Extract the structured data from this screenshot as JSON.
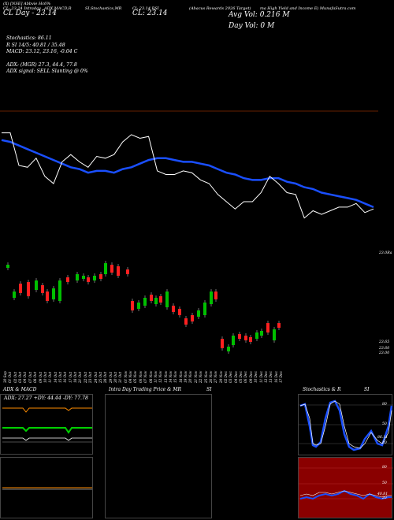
{
  "header": {
    "symbol_line": "(X) [NSE] Abbvie Hc6%",
    "row1": [
      "CL: 23.24 Intraday",
      "ADX,MACD,R",
      "SI,Stochastics,MR",
      "Cl: 23.14 RSI",
      "(Abacus Rewards 2026 Target)",
      "ma High Yield and Income E) MunafaSutra.com"
    ],
    "cl_left": "CL Day - 23.14",
    "cl_mid": "CL: 23.14",
    "avg_vol": "Avg Vol: 0.216  M",
    "day_vol": "Day Vol: 0  M",
    "stoch": "Stochastics: 86.11",
    "r_line": "R                    SI 14/5: 40.81 / 35.48",
    "macd": "MACD: 23.12,  23.16,  -0.04  C",
    "adx": "ADX:                         (MGR) 27.3,  44.4,  77.8",
    "adx_signal": "ADX  signal: SELL  Slanting @ 0%"
  },
  "price_axis": {
    "label_low": "23.0Ra"
  },
  "candle_axis": {
    "labels": [
      "23.65",
      "23.60",
      "23.00"
    ]
  },
  "dates": [
    "30 Sep",
    "01 Oct",
    "02 Oct",
    "03 Oct",
    "04 Oct",
    "07 Oct",
    "08 Oct",
    "09 Oct",
    "10 Oct",
    "11 Oct",
    "14 Oct",
    "15 Oct",
    "16 Oct",
    "17 Oct",
    "18 Oct",
    "21 Oct",
    "22 Oct",
    "23 Oct",
    "24 Oct",
    "25 Oct",
    "28 Oct",
    "29 Oct",
    "30 Oct",
    "31 Oct",
    "01 Nov",
    "04 Nov",
    "05 Nov",
    "06 Nov",
    "07 Nov",
    "08 Nov",
    "11 Nov",
    "12 Nov",
    "13 Nov",
    "14 Nov",
    "15 Nov",
    "18 Nov",
    "19 Nov",
    "20 Nov",
    "21 Nov",
    "22 Nov",
    "25 Nov",
    "26 Nov",
    "27 Nov",
    "29 Nov",
    "02 Dec",
    "03 Dec",
    "04 Dec",
    "05 Dec",
    "06 Dec",
    "09 Dec",
    "10 Dec",
    "11 Dec",
    "12 Dec",
    "13 Dec",
    "16 Dec",
    "17 Dec"
  ],
  "panels": {
    "adx": {
      "title": "ADX  & MACD",
      "values": "ADX: 27.27  +DY: 44.44  -DY: 77.78"
    },
    "intraday": {
      "title": "Intra  Day Trading Price  & MR",
      "right": "SI"
    },
    "stoch": {
      "title": "Stochastics & R",
      "right": "SI",
      "levels": [
        "80",
        "50",
        "20"
      ],
      "value": "86.11"
    },
    "mr": {
      "levels": [
        "80",
        "50",
        "20"
      ],
      "value": "40.81"
    }
  },
  "colors": {
    "ma": "#1a4fff",
    "price": "#ffffff",
    "green": "#00c000",
    "red": "#ff2020",
    "mr_bg": "#8a0000"
  },
  "chart_data": {
    "type": "line",
    "title": "",
    "series": [
      {
        "values": [
          23.58,
          23.58,
          23.4,
          23.39,
          23.44,
          23.34,
          23.3,
          23.42,
          23.46,
          23.42,
          23.39,
          23.45,
          23.44,
          23.46,
          23.53,
          23.57,
          23.55,
          23.56,
          23.37,
          23.35,
          23.35,
          23.37,
          23.36,
          23.32,
          23.3,
          23.24,
          23.2,
          23.16,
          23.2,
          23.2,
          23.25,
          23.34,
          23.3,
          23.25,
          23.24,
          23.11,
          23.15,
          23.13,
          23.15,
          23.17,
          23.17,
          23.19,
          23.14,
          23.16
        ]
      },
      {
        "values": [
          23.54,
          23.53,
          23.51,
          23.49,
          23.47,
          23.45,
          23.43,
          23.41,
          23.39,
          23.38,
          23.36,
          23.37,
          23.37,
          23.36,
          23.38,
          23.39,
          23.41,
          23.43,
          23.44,
          23.44,
          23.43,
          23.42,
          23.42,
          23.41,
          23.4,
          23.38,
          23.36,
          23.35,
          23.33,
          23.32,
          23.32,
          23.33,
          23.33,
          23.31,
          23.3,
          23.28,
          23.27,
          23.25,
          23.24,
          23.23,
          23.22,
          23.21,
          23.19,
          23.17
        ]
      }
    ]
  }
}
